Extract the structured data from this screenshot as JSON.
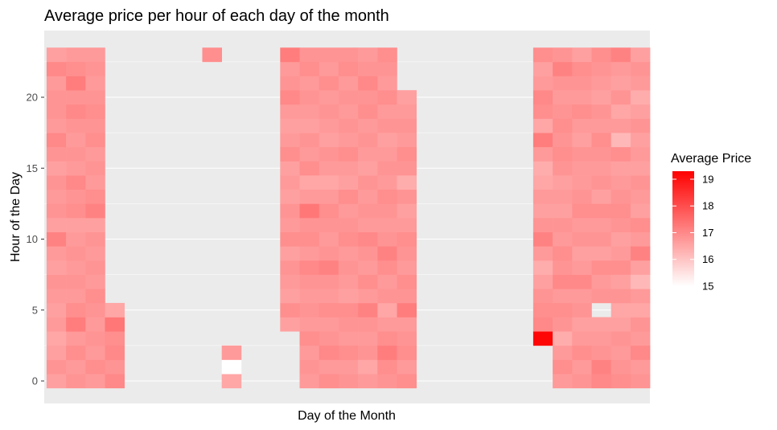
{
  "chart_data": {
    "type": "heatmap",
    "title": "Average price per hour of each day of the month",
    "xlabel": "Day of the Month",
    "ylabel": "Hour of the Day",
    "x_ticks_shown": false,
    "y_ticks": [
      0,
      5,
      10,
      15,
      20
    ],
    "y_range": [
      -0.5,
      23.5
    ],
    "x_range": [
      0.5,
      31.5
    ],
    "grid": true,
    "legend": {
      "title": "Average Price",
      "placement": "right",
      "min": 15,
      "max": 19.3,
      "ticks": [
        15,
        16,
        17,
        18,
        19
      ],
      "low_color": "#ffffff",
      "high_color": "#ff0000"
    },
    "days": [
      {
        "day": 1,
        "hours": [
          0,
          1,
          2,
          3,
          4,
          5,
          6,
          7,
          8,
          9,
          10,
          11,
          12,
          13,
          14,
          15,
          16,
          17,
          18,
          19,
          20,
          21,
          22,
          23
        ],
        "values": [
          16.6,
          16.8,
          16.6,
          16.5,
          16.7,
          16.6,
          16.7,
          16.8,
          16.6,
          16.7,
          17.1,
          16.6,
          16.8,
          16.7,
          16.8,
          16.6,
          16.8,
          17.0,
          16.7,
          16.8,
          16.8,
          16.7,
          17.0,
          16.6
        ]
      },
      {
        "day": 2,
        "hours": [
          0,
          1,
          2,
          3,
          4,
          5,
          6,
          7,
          8,
          9,
          10,
          11,
          12,
          13,
          14,
          15,
          16,
          17,
          18,
          19,
          20,
          21,
          22,
          23
        ],
        "values": [
          16.8,
          16.7,
          16.9,
          16.7,
          17.2,
          16.9,
          16.7,
          16.8,
          16.7,
          16.8,
          16.7,
          16.6,
          16.9,
          16.8,
          17.0,
          16.7,
          16.8,
          16.7,
          16.8,
          17.0,
          16.8,
          17.2,
          16.9,
          16.7
        ]
      },
      {
        "day": 3,
        "hours": [
          0,
          1,
          2,
          3,
          4,
          5,
          6,
          7,
          8,
          9,
          10,
          11,
          12,
          13,
          14,
          15,
          16,
          17,
          18,
          19,
          20,
          21,
          22,
          23
        ],
        "values": [
          16.7,
          16.9,
          16.7,
          16.8,
          16.7,
          16.8,
          16.9,
          16.7,
          16.8,
          16.7,
          16.8,
          16.6,
          17.1,
          16.9,
          16.7,
          16.8,
          16.7,
          16.9,
          16.8,
          16.9,
          16.8,
          16.7,
          16.8,
          16.7
        ]
      },
      {
        "day": 4,
        "hours": [
          0,
          1,
          2,
          3,
          4,
          5
        ],
        "values": [
          17.0,
          16.8,
          17.0,
          16.9,
          17.3,
          16.5
        ]
      },
      {
        "day": 9,
        "hours": [
          23
        ],
        "values": [
          16.9
        ]
      },
      {
        "day": 10,
        "hours": [
          0,
          1,
          2
        ],
        "values": [
          16.5,
          15.0,
          16.7
        ]
      },
      {
        "day": 13,
        "hours": [
          4,
          5,
          6,
          7,
          8,
          9,
          10,
          11,
          12,
          13,
          14,
          15,
          16,
          17,
          18,
          19,
          20,
          21,
          22,
          23
        ],
        "values": [
          16.6,
          16.9,
          16.6,
          16.7,
          16.8,
          16.6,
          16.9,
          16.7,
          16.8,
          16.6,
          16.7,
          16.6,
          16.9,
          16.7,
          16.6,
          16.7,
          17.0,
          16.8,
          16.7,
          17.2
        ]
      },
      {
        "day": 14,
        "hours": [
          0,
          1,
          2,
          3,
          4,
          5,
          6,
          7,
          8,
          9,
          10,
          11,
          12,
          13,
          14,
          15,
          16,
          17,
          18,
          19,
          20,
          21,
          22,
          23
        ],
        "values": [
          16.7,
          16.8,
          16.7,
          16.9,
          16.7,
          16.8,
          16.7,
          16.8,
          17.0,
          16.7,
          16.9,
          16.8,
          17.3,
          16.7,
          16.5,
          16.9,
          16.7,
          16.8,
          16.6,
          16.7,
          16.8,
          16.7,
          16.9,
          16.8
        ]
      },
      {
        "day": 15,
        "hours": [
          0,
          1,
          2,
          3,
          4,
          5,
          6,
          7,
          8,
          9,
          10,
          11,
          12,
          13,
          14,
          15,
          16,
          17,
          18,
          19,
          20,
          21,
          22,
          23
        ],
        "values": [
          16.9,
          16.7,
          17.0,
          16.8,
          16.7,
          16.9,
          16.7,
          16.8,
          17.1,
          16.8,
          16.7,
          16.8,
          16.9,
          16.7,
          16.5,
          16.7,
          16.8,
          16.6,
          16.7,
          16.8,
          16.7,
          16.9,
          16.7,
          16.8
        ]
      },
      {
        "day": 16,
        "hours": [
          0,
          1,
          2,
          3,
          4,
          5,
          6,
          7,
          8,
          9,
          10,
          11,
          12,
          13,
          14,
          15,
          16,
          17,
          18,
          19,
          20,
          21,
          22,
          23
        ],
        "values": [
          16.8,
          16.7,
          16.9,
          16.7,
          16.8,
          16.9,
          16.6,
          16.7,
          16.8,
          16.7,
          16.9,
          16.8,
          16.7,
          16.9,
          16.6,
          16.7,
          16.9,
          16.7,
          16.8,
          16.7,
          16.8,
          16.7,
          16.9,
          16.8
        ]
      },
      {
        "day": 17,
        "hours": [
          0,
          1,
          2,
          3,
          4,
          5,
          6,
          7,
          8,
          9,
          10,
          11,
          12,
          13,
          14,
          15,
          16,
          17,
          18,
          19,
          20,
          21,
          22,
          23
        ],
        "values": [
          16.7,
          16.5,
          16.8,
          16.7,
          16.8,
          17.1,
          16.7,
          16.9,
          16.7,
          16.8,
          17.0,
          16.7,
          16.8,
          16.7,
          16.8,
          16.6,
          16.7,
          16.8,
          16.7,
          16.9,
          16.8,
          17.0,
          16.8,
          16.7
        ]
      },
      {
        "day": 18,
        "hours": [
          0,
          1,
          2,
          3,
          4,
          5,
          6,
          7,
          8,
          9,
          10,
          11,
          12,
          13,
          14,
          15,
          16,
          17,
          18,
          19,
          20,
          21,
          22,
          23
        ],
        "values": [
          16.8,
          16.9,
          17.2,
          16.9,
          16.7,
          16.5,
          16.8,
          16.7,
          16.9,
          17.1,
          16.8,
          16.7,
          16.8,
          16.9,
          16.7,
          16.8,
          16.7,
          16.6,
          16.8,
          16.7,
          16.9,
          16.7,
          16.8,
          16.9
        ]
      },
      {
        "day": 19,
        "hours": [
          0,
          1,
          2,
          3,
          4,
          5,
          6,
          7,
          8,
          9,
          10,
          11,
          12,
          13,
          14,
          15,
          16,
          17,
          18,
          19,
          20
        ],
        "values": [
          16.9,
          16.7,
          16.9,
          16.8,
          16.7,
          17.2,
          16.8,
          16.9,
          16.7,
          16.8,
          16.9,
          16.7,
          16.6,
          16.8,
          16.4,
          16.8,
          16.9,
          16.7,
          16.8,
          16.7,
          16.6
        ]
      },
      {
        "day": 26,
        "hours": [
          3,
          4,
          5,
          6,
          7,
          8,
          9,
          10,
          11,
          12,
          13,
          14,
          15,
          16,
          17,
          18,
          19,
          20,
          21,
          22,
          23
        ],
        "values": [
          19.2,
          17.0,
          16.9,
          16.8,
          16.6,
          16.4,
          16.7,
          17.1,
          16.8,
          16.6,
          16.7,
          16.5,
          16.4,
          16.7,
          17.2,
          16.5,
          16.9,
          17.0,
          16.7,
          16.6,
          16.9
        ]
      },
      {
        "day": 27,
        "hours": [
          0,
          1,
          2,
          3,
          4,
          5,
          6,
          7,
          8,
          9,
          10,
          11,
          12,
          13,
          14,
          15,
          16,
          17,
          18,
          19,
          20,
          21,
          22,
          23
        ],
        "values": [
          16.7,
          16.9,
          16.7,
          16.4,
          16.8,
          16.9,
          16.7,
          17.0,
          16.8,
          16.9,
          16.7,
          16.8,
          16.6,
          16.7,
          16.6,
          16.8,
          16.9,
          16.8,
          16.9,
          16.8,
          16.7,
          16.8,
          17.1,
          16.8
        ]
      },
      {
        "day": 28,
        "hours": [
          0,
          1,
          2,
          3,
          4,
          5,
          6,
          7,
          8,
          9,
          10,
          11,
          12,
          13,
          14,
          15,
          16,
          17,
          18,
          19,
          20,
          21,
          22,
          23
        ],
        "values": [
          16.8,
          16.7,
          16.9,
          16.7,
          16.6,
          16.8,
          16.7,
          17.0,
          16.7,
          16.6,
          16.8,
          16.7,
          16.9,
          16.8,
          16.7,
          16.7,
          16.8,
          16.6,
          16.7,
          16.9,
          16.7,
          16.8,
          16.9,
          16.6
        ]
      },
      {
        "day": 29,
        "hours": [
          0,
          1,
          2,
          3,
          4,
          6,
          7,
          8,
          9,
          10,
          11,
          12,
          13,
          14,
          15,
          16,
          17,
          18,
          19,
          20,
          21,
          22,
          23
        ],
        "values": [
          17.0,
          17.1,
          16.8,
          16.7,
          16.6,
          16.8,
          16.7,
          16.9,
          16.6,
          16.8,
          16.7,
          16.9,
          16.6,
          16.8,
          16.7,
          16.8,
          16.9,
          16.7,
          16.8,
          16.6,
          16.7,
          16.8,
          16.9
        ]
      },
      {
        "day": 30,
        "hours": [
          0,
          1,
          2,
          3,
          4,
          5,
          6,
          7,
          8,
          9,
          10,
          11,
          12,
          13,
          14,
          15,
          16,
          17,
          18,
          19,
          20,
          21,
          22,
          23
        ],
        "values": [
          16.9,
          16.8,
          16.7,
          16.8,
          16.6,
          16.5,
          16.8,
          16.6,
          16.9,
          16.7,
          16.6,
          16.8,
          16.9,
          16.8,
          16.7,
          16.6,
          16.9,
          16.2,
          16.7,
          16.5,
          16.8,
          16.6,
          16.7,
          17.1
        ]
      },
      {
        "day": 31,
        "hours": [
          0,
          1,
          2,
          3,
          4,
          5,
          6,
          7,
          8,
          9,
          10,
          11,
          12,
          13,
          14,
          15,
          16,
          17,
          18,
          19,
          20,
          21,
          22,
          23
        ],
        "values": [
          16.8,
          16.7,
          17.0,
          16.7,
          16.8,
          16.5,
          16.7,
          16.2,
          16.6,
          17.1,
          16.7,
          16.9,
          16.6,
          16.7,
          16.8,
          16.6,
          16.7,
          16.6,
          16.8,
          16.6,
          16.4,
          16.7,
          16.8,
          16.6
        ]
      }
    ]
  }
}
